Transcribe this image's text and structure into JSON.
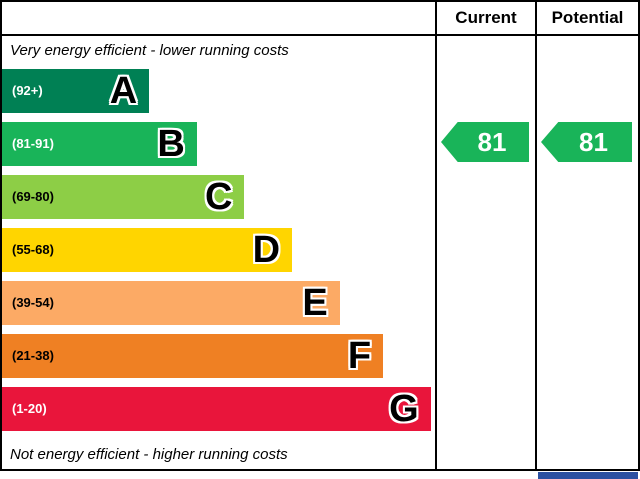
{
  "chart_data": {
    "type": "bar",
    "categories": [
      "A",
      "B",
      "C",
      "D",
      "E",
      "F",
      "G"
    ],
    "band_ranges": [
      "92+",
      "81-91",
      "69-80",
      "55-68",
      "39-54",
      "21-38",
      "1-20"
    ],
    "values": [
      34,
      45,
      56,
      67,
      78,
      88,
      99
    ],
    "current": 81,
    "potential": 81,
    "current_band": "B",
    "potential_band": "B",
    "annotations": [
      "Very energy efficient - lower running costs",
      "Not energy efficient - higher running costs"
    ],
    "legend_position": "none",
    "grid": false
  },
  "header": {
    "current_label": "Current",
    "potential_label": "Potential"
  },
  "captions": {
    "top": "Very energy efficient - lower running costs",
    "bottom": "Not energy efficient - higher running costs"
  },
  "bands": [
    {
      "letter": "A",
      "range": "(92+)",
      "color": "#008054",
      "width_pct": 34,
      "range_text_color": "#ffffff"
    },
    {
      "letter": "B",
      "range": "(81-91)",
      "color": "#19b459",
      "width_pct": 45,
      "range_text_color": "#ffffff"
    },
    {
      "letter": "C",
      "range": "(69-80)",
      "color": "#8dce46",
      "width_pct": 56,
      "range_text_color": "#000000"
    },
    {
      "letter": "D",
      "range": "(55-68)",
      "color": "#ffd500",
      "width_pct": 67,
      "range_text_color": "#000000"
    },
    {
      "letter": "E",
      "range": "(39-54)",
      "color": "#fcaa65",
      "width_pct": 78,
      "range_text_color": "#000000"
    },
    {
      "letter": "F",
      "range": "(21-38)",
      "color": "#ef8023",
      "width_pct": 88,
      "range_text_color": "#000000"
    },
    {
      "letter": "G",
      "range": "(1-20)",
      "color": "#e9153b",
      "width_pct": 99,
      "range_text_color": "#ffffff"
    }
  ],
  "current": {
    "value": "81",
    "color": "#19b459"
  },
  "potential": {
    "value": "81",
    "color": "#19b459"
  },
  "footer_fragment_color": "#2b50a1"
}
